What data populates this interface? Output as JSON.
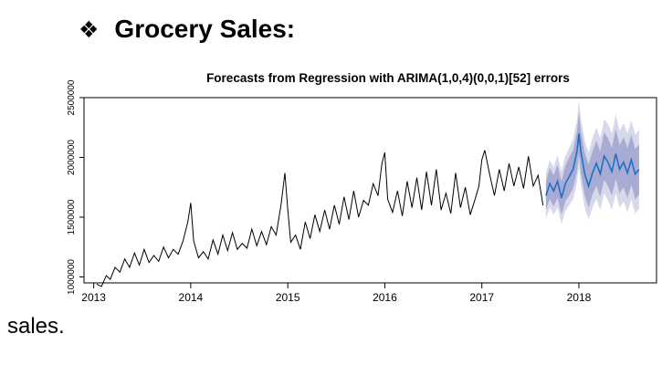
{
  "heading": {
    "bullet": "❖",
    "text": "Grocery Sales:"
  },
  "footer": {
    "text": "sales."
  },
  "chart_data": {
    "type": "line",
    "title": "Forecasts from Regression with ARIMA(1,0,4)(0,0,1)[52] errors",
    "xlabel": "",
    "ylabel": "",
    "xlim": [
      2012.9,
      2018.8
    ],
    "ylim": [
      950000,
      2500000
    ],
    "x_ticks": [
      2013,
      2014,
      2015,
      2016,
      2017,
      2018
    ],
    "x_tick_labels": [
      "2013",
      "2014",
      "2015",
      "2016",
      "2017",
      "2018"
    ],
    "y_ticks": [
      1000000,
      1500000,
      2000000,
      2500000
    ],
    "y_tick_labels": [
      "1000000",
      "1500000",
      "2000000",
      "2500000"
    ],
    "grid": false,
    "legend": "none",
    "colors": {
      "history": "#000000",
      "forecast": "#1f6fc8",
      "pi95": "#d7d9ea",
      "pi80": "#a8acd2"
    },
    "history": {
      "x": [
        2013.03,
        2013.08,
        2013.13,
        2013.17,
        2013.22,
        2013.27,
        2013.32,
        2013.37,
        2013.42,
        2013.47,
        2013.52,
        2013.57,
        2013.62,
        2013.67,
        2013.72,
        2013.77,
        2013.82,
        2013.87,
        2013.92,
        2013.97,
        2014.0,
        2014.03,
        2014.08,
        2014.13,
        2014.18,
        2014.23,
        2014.28,
        2014.33,
        2014.38,
        2014.43,
        2014.48,
        2014.53,
        2014.58,
        2014.63,
        2014.68,
        2014.73,
        2014.78,
        2014.83,
        2014.88,
        2014.93,
        2014.97,
        2015.0,
        2015.03,
        2015.08,
        2015.13,
        2015.18,
        2015.23,
        2015.28,
        2015.33,
        2015.38,
        2015.43,
        2015.48,
        2015.53,
        2015.58,
        2015.63,
        2015.68,
        2015.73,
        2015.78,
        2015.83,
        2015.88,
        2015.93,
        2015.97,
        2016.0,
        2016.03,
        2016.08,
        2016.13,
        2016.18,
        2016.23,
        2016.28,
        2016.33,
        2016.38,
        2016.43,
        2016.48,
        2016.53,
        2016.58,
        2016.63,
        2016.68,
        2016.73,
        2016.78,
        2016.83,
        2016.88,
        2016.93,
        2016.97,
        2017.0,
        2017.03,
        2017.08,
        2017.13,
        2017.18,
        2017.23,
        2017.28,
        2017.33,
        2017.38,
        2017.43,
        2017.48,
        2017.53,
        2017.58,
        2017.63
      ],
      "y": [
        940000,
        920000,
        1010000,
        980000,
        1080000,
        1040000,
        1150000,
        1080000,
        1200000,
        1100000,
        1230000,
        1120000,
        1180000,
        1130000,
        1250000,
        1160000,
        1230000,
        1190000,
        1300000,
        1460000,
        1620000,
        1300000,
        1160000,
        1210000,
        1150000,
        1310000,
        1190000,
        1350000,
        1220000,
        1370000,
        1230000,
        1280000,
        1240000,
        1400000,
        1260000,
        1380000,
        1270000,
        1420000,
        1350000,
        1600000,
        1870000,
        1560000,
        1290000,
        1350000,
        1230000,
        1460000,
        1320000,
        1520000,
        1380000,
        1560000,
        1400000,
        1600000,
        1440000,
        1670000,
        1480000,
        1720000,
        1500000,
        1640000,
        1600000,
        1780000,
        1680000,
        1950000,
        2040000,
        1650000,
        1540000,
        1720000,
        1510000,
        1800000,
        1580000,
        1830000,
        1560000,
        1880000,
        1600000,
        1900000,
        1560000,
        1700000,
        1530000,
        1870000,
        1580000,
        1750000,
        1520000,
        1650000,
        1760000,
        1980000,
        2060000,
        1860000,
        1680000,
        1900000,
        1720000,
        1950000,
        1760000,
        1920000,
        1740000,
        2010000,
        1760000,
        1850000,
        1600000
      ]
    },
    "forecast": {
      "x": [
        2017.66,
        2017.7,
        2017.74,
        2017.78,
        2017.82,
        2017.86,
        2017.9,
        2017.94,
        2017.98,
        2018.0,
        2018.02,
        2018.06,
        2018.1,
        2018.14,
        2018.18,
        2018.22,
        2018.26,
        2018.3,
        2018.34,
        2018.38,
        2018.42,
        2018.46,
        2018.5,
        2018.54,
        2018.58,
        2018.62
      ],
      "y": [
        1680000,
        1780000,
        1720000,
        1800000,
        1660000,
        1780000,
        1840000,
        1900000,
        2050000,
        2200000,
        2050000,
        1860000,
        1760000,
        1870000,
        1950000,
        1860000,
        2010000,
        1960000,
        1880000,
        2030000,
        1900000,
        1960000,
        1870000,
        1980000,
        1860000,
        1900000
      ],
      "lo80": [
        1560000,
        1650000,
        1590000,
        1660000,
        1520000,
        1630000,
        1680000,
        1740000,
        1880000,
        2020000,
        1870000,
        1680000,
        1580000,
        1690000,
        1760000,
        1670000,
        1810000,
        1760000,
        1680000,
        1820000,
        1700000,
        1750000,
        1660000,
        1770000,
        1650000,
        1690000
      ],
      "hi80": [
        1800000,
        1910000,
        1850000,
        1940000,
        1800000,
        1930000,
        2000000,
        2060000,
        2220000,
        2380000,
        2230000,
        2040000,
        1940000,
        2050000,
        2140000,
        2050000,
        2210000,
        2160000,
        2080000,
        2240000,
        2100000,
        2170000,
        2080000,
        2190000,
        2070000,
        2110000
      ],
      "lo95": [
        1490000,
        1580000,
        1520000,
        1580000,
        1440000,
        1550000,
        1600000,
        1650000,
        1790000,
        1920000,
        1770000,
        1580000,
        1480000,
        1580000,
        1650000,
        1560000,
        1700000,
        1640000,
        1560000,
        1700000,
        1580000,
        1630000,
        1540000,
        1650000,
        1530000,
        1570000
      ],
      "hi95": [
        1870000,
        1980000,
        1920000,
        2020000,
        1880000,
        2010000,
        2080000,
        2150000,
        2310000,
        2480000,
        2330000,
        2140000,
        2040000,
        2160000,
        2250000,
        2160000,
        2320000,
        2280000,
        2200000,
        2360000,
        2220000,
        2290000,
        2200000,
        2310000,
        2190000,
        2230000
      ]
    }
  }
}
